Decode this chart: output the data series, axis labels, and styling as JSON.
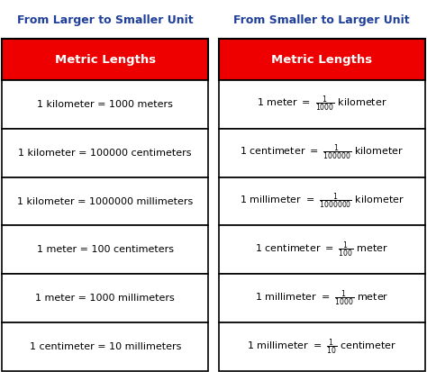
{
  "title_left": "From Larger to Smaller Unit",
  "title_right": "From Smaller to Larger Unit",
  "header": "Metric Lengths",
  "header_bg": "#EE0000",
  "header_fg": "#FFFFFF",
  "title_color": "#1F3F99",
  "body_bg": "#FFFFFF",
  "border_color": "#000000",
  "text_color": "#000000",
  "left_rows": [
    "1 kilometer = 1000 meters",
    "1 kilometer = 100000 centimeters",
    "1 kilometer = 1000000 millimeters",
    "1 meter = 100 centimeters",
    "1 meter = 1000 millimeters",
    "1 centimeter = 10 millimeters"
  ],
  "right_rows_prefix": [
    "1 meter = ",
    "1 centimeter = ",
    "1 millimeter = ",
    "1 centimeter = ",
    "1 millimeter = ",
    "1 millimeter = "
  ],
  "right_rows_frac_num": [
    "1",
    "1",
    "1",
    "1",
    "1",
    "1"
  ],
  "right_rows_frac_den": [
    "1000",
    "100000",
    "1000000",
    "100",
    "1000",
    "10"
  ],
  "right_rows_suffix": [
    "kilometer",
    "kilometer",
    "kilometer",
    "meter",
    "meter",
    "centimeter"
  ],
  "figsize": [
    4.74,
    4.13
  ],
  "dpi": 100
}
